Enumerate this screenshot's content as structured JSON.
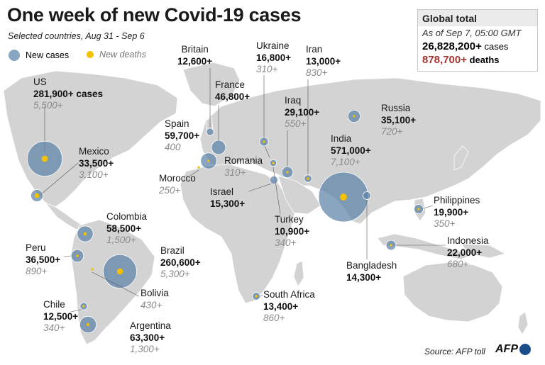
{
  "title": "One week of new Covid-19 cases",
  "subtitle": "Selected countries, Aug 31 - Sep 6",
  "legend": {
    "cases_label": "New cases",
    "deaths_label": "New deaths"
  },
  "colors": {
    "cases": "#5b82a8",
    "deaths": "#f2c200",
    "land": "#d3d3d3",
    "deaths_total": "#a8322d"
  },
  "global_total": {
    "heading": "Global total",
    "as_of": "As of Sep 7, 05:00 GMT",
    "cases": "26,828,200+",
    "cases_unit": "cases",
    "deaths": "878,700+",
    "deaths_unit": "deaths"
  },
  "countries": [
    {
      "name": "US",
      "cases": "281,900+ cases",
      "deaths": "5,500+",
      "cases_value": 281900,
      "deaths_value": 5500
    },
    {
      "name": "Mexico",
      "cases": "33,500+",
      "deaths": "3,100+",
      "cases_value": 33500,
      "deaths_value": 3100
    },
    {
      "name": "Colombia",
      "cases": "58,500+",
      "deaths": "1,500+",
      "cases_value": 58500,
      "deaths_value": 1500
    },
    {
      "name": "Peru",
      "cases": "36,500+",
      "deaths": "890+",
      "cases_value": 36500,
      "deaths_value": 890
    },
    {
      "name": "Brazil",
      "cases": "260,600+",
      "deaths": "5,300+",
      "cases_value": 260600,
      "deaths_value": 5300
    },
    {
      "name": "Bolivia",
      "cases": "",
      "deaths": "430+",
      "cases_value": null,
      "deaths_value": 430
    },
    {
      "name": "Chile",
      "cases": "12,500+",
      "deaths": "340+",
      "cases_value": 12500,
      "deaths_value": 340
    },
    {
      "name": "Argentina",
      "cases": "63,300+",
      "deaths": "1,300+",
      "cases_value": 63300,
      "deaths_value": 1300
    },
    {
      "name": "Britain",
      "cases": "12,600+",
      "deaths": "",
      "cases_value": 12600,
      "deaths_value": null
    },
    {
      "name": "France",
      "cases": "46,800+",
      "deaths": "",
      "cases_value": 46800,
      "deaths_value": null
    },
    {
      "name": "Spain",
      "cases": "59,700+",
      "deaths": "400",
      "cases_value": 59700,
      "deaths_value": 400
    },
    {
      "name": "Morocco",
      "cases": "",
      "deaths": "250+",
      "cases_value": null,
      "deaths_value": 250
    },
    {
      "name": "Romania",
      "cases": "",
      "deaths": "310+",
      "cases_value": null,
      "deaths_value": 310
    },
    {
      "name": "Ukraine",
      "cases": "16,800+",
      "deaths": "310+",
      "cases_value": 16800,
      "deaths_value": 310
    },
    {
      "name": "Iran",
      "cases": "13,000+",
      "deaths": "830+",
      "cases_value": 13000,
      "deaths_value": 830
    },
    {
      "name": "Iraq",
      "cases": "29,100+",
      "deaths": "550+",
      "cases_value": 29100,
      "deaths_value": 550
    },
    {
      "name": "Israel",
      "cases": "15,300+",
      "deaths": "",
      "cases_value": 15300,
      "deaths_value": null
    },
    {
      "name": "Turkey",
      "cases": "10,900+",
      "deaths": "340+",
      "cases_value": 10900,
      "deaths_value": 340
    },
    {
      "name": "South Africa",
      "cases": "13,400+",
      "deaths": "860+",
      "cases_value": 13400,
      "deaths_value": 860
    },
    {
      "name": "Russia",
      "cases": "35,100+",
      "deaths": "720+",
      "cases_value": 35100,
      "deaths_value": 720
    },
    {
      "name": "India",
      "cases": "571,000+",
      "deaths": "7,100+",
      "cases_value": 571000,
      "deaths_value": 7100
    },
    {
      "name": "Bangladesh",
      "cases": "14,300+",
      "deaths": "",
      "cases_value": 14300,
      "deaths_value": null
    },
    {
      "name": "Philippines",
      "cases": "19,900+",
      "deaths": "350+",
      "cases_value": 19900,
      "deaths_value": 350
    },
    {
      "name": "Indonesia",
      "cases": "22,000+",
      "deaths": "680+",
      "cases_value": 22000,
      "deaths_value": 680
    }
  ],
  "source": "Source: AFP toll",
  "logo_text": "AFP"
}
